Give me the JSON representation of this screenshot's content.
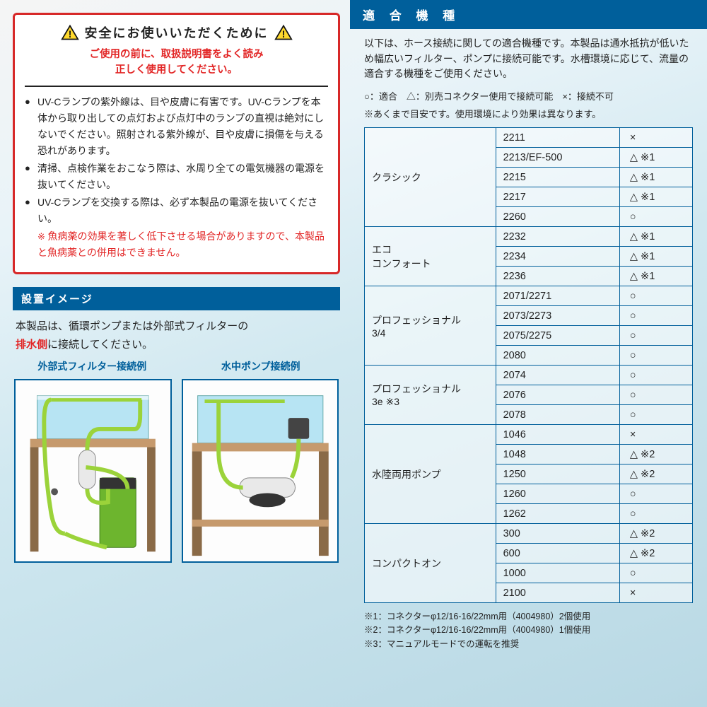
{
  "colors": {
    "brand_red": "#d72828",
    "text_red": "#e22626",
    "brand_blue": "#005f9b",
    "triangle_stroke": "#111",
    "triangle_fill": "#ffd92e",
    "hose_green": "#9bd33a",
    "filter_green": "#6db52e",
    "tank_blue": "#b7e4f3",
    "wood": "#c69a6d",
    "wood_dark": "#8a6a47",
    "uv_body": "#e9e9e9"
  },
  "safety": {
    "title": "安全にお使いいただくために",
    "sub1": "ご使用の前に、取扱説明書をよく読み",
    "sub2": "正しく使用してください。",
    "bullets": [
      "UV-Cランプの紫外線は、目や皮膚に有害です。UV-Cランプを本体から取り出しての点灯および点灯中のランプの直視は絶対にしないでください。照射される紫外線が、目や皮膚に損傷を与える恐れがあります。",
      "清掃、点検作業をおこなう際は、水周り全ての電気機器の電源を抜いてください。",
      "UV-Cランプを交換する際は、必ず本製品の電源を抜いてください。"
    ],
    "red_warning": "魚病薬の効果を著しく低下させる場合がありますので、本製品と魚病薬との併用はできません。"
  },
  "install": {
    "header": "設置イメージ",
    "text_pre": "本製品は、循環ポンプまたは外部式フィルターの",
    "text_red": "排水側",
    "text_post": "に接続してください。",
    "diagram_labels": [
      "外部式フィルター接続例",
      "水中ポンプ接続例"
    ]
  },
  "compat": {
    "header": "適 合 機 種",
    "intro": "以下は、ホース接続に関しての適合機種です。本製品は通水抵抗が低いため幅広いフィルター、ポンプに接続可能です。水槽環境に応じて、流量の適合する機種をご使用ください。",
    "legend": "○：適合　△：別売コネクター使用で接続可能　×：接続不可",
    "legend_note": "※あくまで目安です。使用環境により効果は異なります。",
    "rows": [
      {
        "cat": "クラシック",
        "models": [
          [
            "2211",
            "×"
          ],
          [
            "2213/EF-500",
            "△ ※1"
          ],
          [
            "2215",
            "△ ※1"
          ],
          [
            "2217",
            "△ ※1"
          ],
          [
            "2260",
            "○"
          ]
        ]
      },
      {
        "cat": "エコ\nコンフォート",
        "models": [
          [
            "2232",
            "△ ※1"
          ],
          [
            "2234",
            "△ ※1"
          ],
          [
            "2236",
            "△ ※1"
          ]
        ]
      },
      {
        "cat": "プロフェッショナル\n3/4",
        "models": [
          [
            "2071/2271",
            "○"
          ],
          [
            "2073/2273",
            "○"
          ],
          [
            "2075/2275",
            "○"
          ],
          [
            "2080",
            "○"
          ]
        ]
      },
      {
        "cat": "プロフェッショナル\n3e ※3",
        "models": [
          [
            "2074",
            "○"
          ],
          [
            "2076",
            "○"
          ],
          [
            "2078",
            "○"
          ]
        ]
      },
      {
        "cat": "水陸両用ポンプ",
        "models": [
          [
            "1046",
            "×"
          ],
          [
            "1048",
            "△ ※2"
          ],
          [
            "1250",
            "△ ※2"
          ],
          [
            "1260",
            "○"
          ],
          [
            "1262",
            "○"
          ]
        ]
      },
      {
        "cat": "コンパクトオン",
        "models": [
          [
            "300",
            "△ ※2"
          ],
          [
            "600",
            "△ ※2"
          ],
          [
            "1000",
            "○"
          ],
          [
            "2100",
            "×"
          ]
        ]
      }
    ],
    "footnotes": [
      "※1：コネクターφ12/16-16/22mm用（4004980）2個使用",
      "※2：コネクターφ12/16-16/22mm用（4004980）1個使用",
      "※3：マニュアルモードでの運転を推奨"
    ]
  }
}
